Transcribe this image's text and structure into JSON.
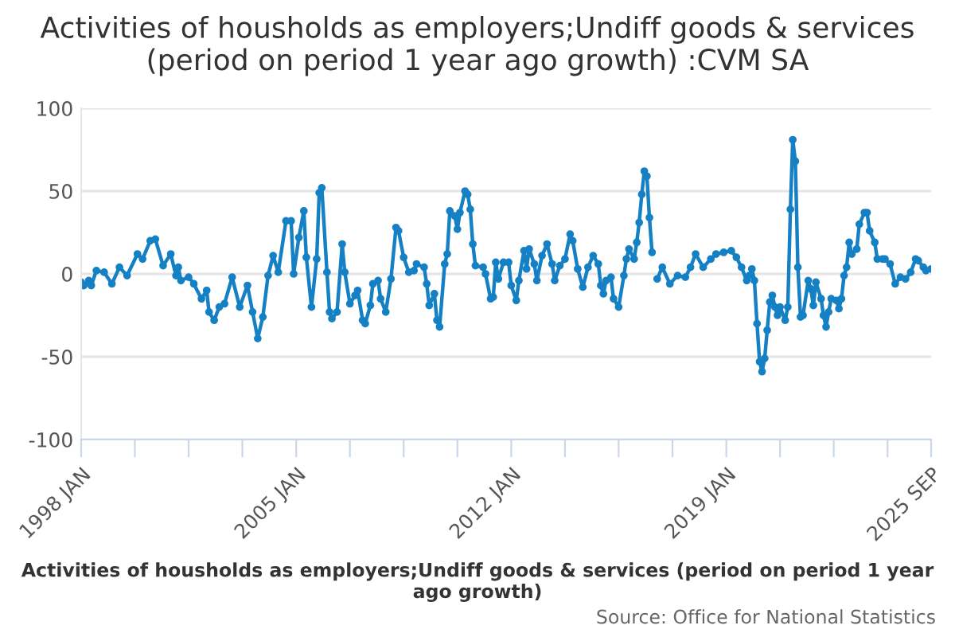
{
  "chart_data": {
    "type": "line",
    "title": "Activities of housholds as employers;Undiff goods & services (period on period 1 year ago growth) :CVM SA",
    "xlabel": "Activities of housholds as employers;Undiff goods & services (period on period 1 year ago growth)",
    "annotations": [
      "Source: Office for National Statistics"
    ],
    "x": [
      "1998-01",
      "1998-02",
      "1998-04",
      "1998-05",
      "1998-07",
      "1998-10",
      "1999-01",
      "1999-04",
      "1999-07",
      "1999-11",
      "2000-01",
      "2000-04",
      "2000-06",
      "2000-09",
      "2000-12",
      "2001-02",
      "2001-03",
      "2001-04",
      "2001-07",
      "2001-09",
      "2001-12",
      "2002-02",
      "2002-03",
      "2002-05",
      "2002-07",
      "2002-09",
      "2002-12",
      "2003-03",
      "2003-06",
      "2003-08",
      "2003-10",
      "2003-12",
      "2004-02",
      "2004-04",
      "2004-06",
      "2004-09",
      "2004-11",
      "2004-12",
      "2005-02",
      "2005-04",
      "2005-05",
      "2005-07",
      "2005-09",
      "2005-10",
      "2005-11",
      "2006-01",
      "2006-02",
      "2006-03",
      "2006-05",
      "2006-07",
      "2006-08",
      "2006-10",
      "2006-12",
      "2007-01",
      "2007-03",
      "2007-04",
      "2007-06",
      "2007-07",
      "2007-09",
      "2007-10",
      "2007-12",
      "2008-02",
      "2008-04",
      "2008-05",
      "2008-07",
      "2008-09",
      "2008-11",
      "2008-12",
      "2009-03",
      "2009-04",
      "2009-05",
      "2009-07",
      "2009-08",
      "2009-09",
      "2009-11",
      "2009-12",
      "2010-01",
      "2010-03",
      "2010-04",
      "2010-05",
      "2010-07",
      "2010-08",
      "2010-09",
      "2010-10",
      "2010-11",
      "2011-02",
      "2011-03",
      "2011-05",
      "2011-06",
      "2011-07",
      "2011-08",
      "2011-10",
      "2011-12",
      "2012-01",
      "2012-03",
      "2012-04",
      "2012-06",
      "2012-07",
      "2012-08",
      "2012-10",
      "2012-11",
      "2013-01",
      "2013-03",
      "2013-05",
      "2013-06",
      "2013-08",
      "2013-10",
      "2013-12",
      "2014-01",
      "2014-03",
      "2014-05",
      "2014-07",
      "2014-09",
      "2014-11",
      "2014-12",
      "2015-01",
      "2015-02",
      "2015-04",
      "2015-05",
      "2015-07",
      "2015-09",
      "2015-10",
      "2015-11",
      "2016-01",
      "2016-02",
      "2016-03",
      "2016-04",
      "2016-05",
      "2016-06",
      "2016-07",
      "2016-08",
      "2016-09",
      "2016-10",
      "2016-12",
      "2017-03",
      "2017-06",
      "2017-09",
      "2017-11",
      "2018-01",
      "2018-04",
      "2018-07",
      "2018-09",
      "2018-12",
      "2019-03",
      "2019-05",
      "2019-07",
      "2019-09",
      "2019-10",
      "2019-11",
      "2019-12",
      "2020-01",
      "2020-02",
      "2020-03",
      "2020-04",
      "2020-05",
      "2020-06",
      "2020-07",
      "2020-08",
      "2020-09",
      "2020-10",
      "2020-12",
      "2021-01",
      "2021-02",
      "2021-03",
      "2021-04",
      "2021-05",
      "2021-06",
      "2021-07",
      "2021-09",
      "2021-10",
      "2021-11",
      "2021-12",
      "2022-02",
      "2022-03",
      "2022-04",
      "2022-05",
      "2022-06",
      "2022-08",
      "2022-09",
      "2022-10",
      "2022-11",
      "2022-12",
      "2023-01",
      "2023-02",
      "2023-04",
      "2023-05",
      "2023-07",
      "2023-08",
      "2023-09",
      "2023-11",
      "2023-12",
      "2024-02",
      "2024-03",
      "2024-05",
      "2024-07",
      "2024-09",
      "2024-11",
      "2025-01",
      "2025-03",
      "2025-04",
      "2025-06",
      "2025-07",
      "2025-09"
    ],
    "series": [
      {
        "color": "#1580c4",
        "values": [
          -5,
          -7,
          -4,
          -7,
          2,
          1,
          -6,
          4,
          -1,
          12,
          9,
          20,
          21,
          5,
          12,
          -1,
          4,
          -4,
          -2,
          -6,
          -15,
          -10,
          -23,
          -28,
          -20,
          -18,
          -2,
          -20,
          -7,
          -23,
          -39,
          -26,
          -1,
          11,
          1,
          32,
          32,
          0,
          22,
          38,
          10,
          -20,
          9,
          49,
          52,
          1,
          -23,
          -27,
          -23,
          18,
          1,
          -18,
          -13,
          -10,
          -28,
          -30,
          -19,
          -6,
          -4,
          -15,
          -23,
          -3,
          28,
          26,
          10,
          1,
          2,
          6,
          4,
          -6,
          -19,
          -12,
          -28,
          -32,
          6,
          12,
          38,
          35,
          27,
          37,
          50,
          48,
          39,
          18,
          5,
          4,
          0,
          -15,
          -14,
          7,
          -3,
          7,
          7,
          -7,
          -16,
          -4,
          14,
          3,
          15,
          6,
          -4,
          11,
          18,
          6,
          -4,
          5,
          9,
          24,
          20,
          3,
          -8,
          4,
          11,
          6,
          -7,
          -12,
          -4,
          -2,
          -15,
          -20,
          -1,
          9,
          15,
          9,
          19,
          31,
          48,
          62,
          59,
          34,
          13,
          null,
          -3,
          4,
          -6,
          -1,
          -2,
          4,
          12,
          4,
          9,
          12,
          13,
          14,
          10,
          4,
          -4,
          -1,
          3,
          -4,
          -30,
          -53,
          -59,
          -51,
          -34,
          -17,
          -13,
          -20,
          -25,
          -20,
          -28,
          -20,
          39,
          81,
          68,
          4,
          -26,
          -25,
          -4,
          -9,
          -19,
          -5,
          -15,
          -25,
          -32,
          -23,
          -15,
          -16,
          -21,
          -15,
          -1,
          4,
          19,
          12,
          15,
          30,
          37,
          37,
          26,
          19,
          9,
          9,
          9,
          6,
          -6,
          -2,
          -3,
          1,
          9,
          8,
          4,
          2,
          3
        ]
      }
    ],
    "xlim": [
      "1998-01",
      "2025-09"
    ],
    "xticks": [
      {
        "value": "1998-01",
        "label": "1998 JAN"
      },
      {
        "value": "1999-10",
        "label": null
      },
      {
        "value": "2001-07",
        "label": null
      },
      {
        "value": "2003-04",
        "label": null
      },
      {
        "value": "2005-01",
        "label": "2005 JAN"
      },
      {
        "value": "2006-10",
        "label": null
      },
      {
        "value": "2008-07",
        "label": null
      },
      {
        "value": "2010-04",
        "label": null
      },
      {
        "value": "2012-01",
        "label": "2012 JAN"
      },
      {
        "value": "2013-10",
        "label": null
      },
      {
        "value": "2015-07",
        "label": null
      },
      {
        "value": "2017-04",
        "label": null
      },
      {
        "value": "2019-01",
        "label": "2019 JAN"
      },
      {
        "value": "2020-10",
        "label": null
      },
      {
        "value": "2022-07",
        "label": null
      },
      {
        "value": "2024-04",
        "label": null
      },
      {
        "value": "2025-09",
        "label": "2025 SEP"
      }
    ],
    "ylim": [
      -100,
      100
    ],
    "yticks": [
      -100,
      -50,
      0,
      50,
      100
    ],
    "grid": "y",
    "marker": "circle",
    "line_style": "solid"
  }
}
